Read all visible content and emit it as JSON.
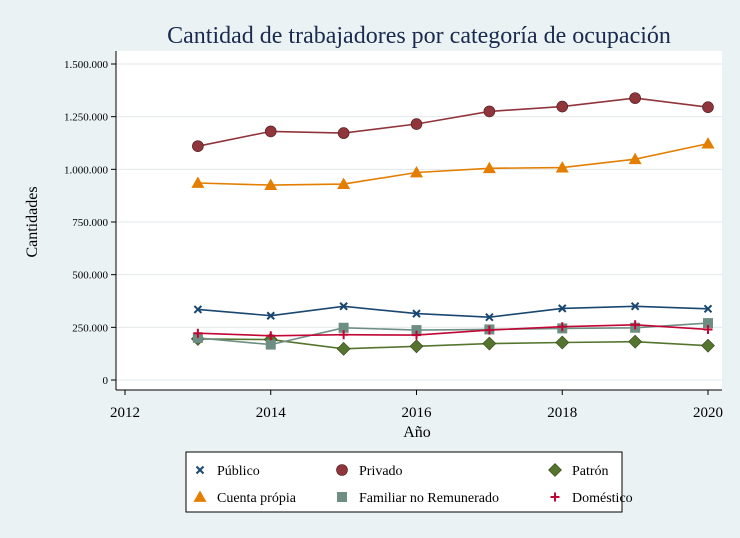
{
  "chart_data": {
    "type": "line",
    "title": "Cantidad de trabajadores por categoría de ocupación",
    "xlabel": "Año",
    "ylabel": "Cantidades",
    "xlim": [
      2012,
      2020
    ],
    "ylim": [
      0,
      1500000
    ],
    "x_ticks": [
      "2012",
      "2014",
      "2016",
      "2018",
      "2020"
    ],
    "y_ticks": [
      "0",
      "250.000",
      "500.000",
      "750.000",
      "1.000.000",
      "1.250.000",
      "1.500.000"
    ],
    "grid": true,
    "legend_position": "bottom",
    "x": [
      2013,
      2014,
      2015,
      2016,
      2017,
      2018,
      2019,
      2020
    ],
    "series": [
      {
        "name": "Público",
        "color": "#1a476f",
        "marker": "x",
        "values": [
          335000,
          305000,
          350000,
          315000,
          298000,
          340000,
          350000,
          338000
        ]
      },
      {
        "name": "Privado",
        "color": "#90353b",
        "marker": "circle",
        "values": [
          1110000,
          1180000,
          1172000,
          1215000,
          1275000,
          1298000,
          1338000,
          1295000
        ]
      },
      {
        "name": "Patrón",
        "color": "#55752f",
        "marker": "diamond",
        "values": [
          195000,
          192000,
          148000,
          160000,
          173000,
          178000,
          182000,
          163000
        ]
      },
      {
        "name": "Cuenta própia",
        "color": "#e37e00",
        "marker": "triangle",
        "values": [
          935000,
          925000,
          930000,
          985000,
          1005000,
          1008000,
          1048000,
          1122000
        ]
      },
      {
        "name": "Familiar no Remunerado",
        "color": "#6e8e84",
        "marker": "square",
        "values": [
          200000,
          168000,
          248000,
          237000,
          240000,
          245000,
          248000,
          270000
        ]
      },
      {
        "name": "Doméstico",
        "color": "#c10534",
        "marker": "plus",
        "values": [
          222000,
          210000,
          215000,
          213000,
          237000,
          253000,
          262000,
          240000
        ]
      }
    ]
  }
}
